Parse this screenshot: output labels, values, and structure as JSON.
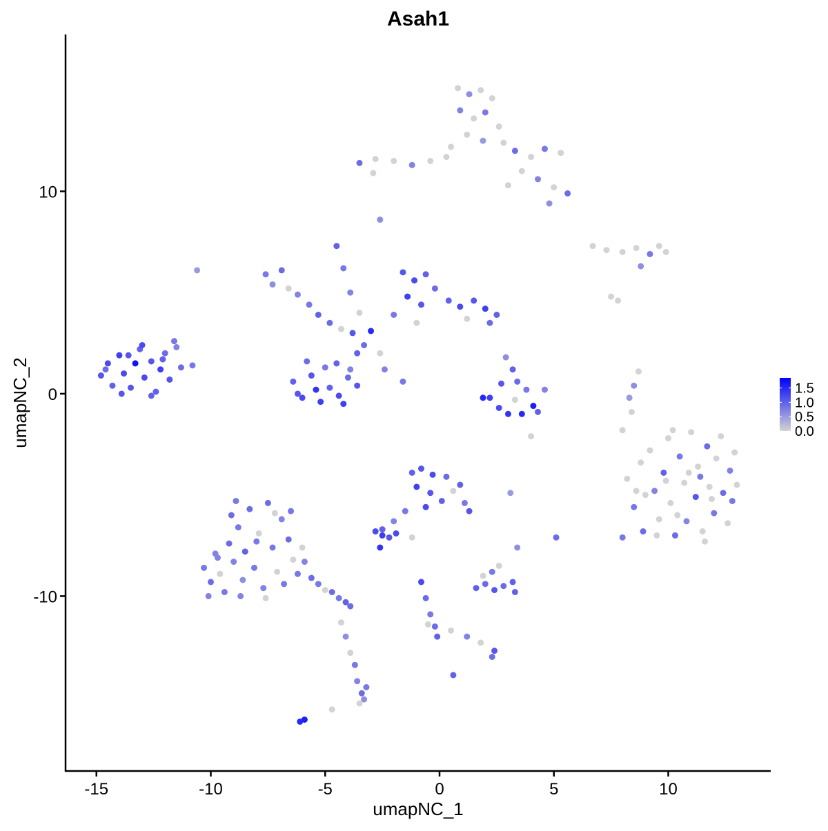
{
  "chart_data": {
    "type": "scatter",
    "title": "Asah1",
    "x_label": "umapNC_1",
    "y_label": "umapNC_2",
    "xlim": [
      -16.35,
      14.48
    ],
    "xticks": [
      -15,
      -10,
      -5,
      0,
      5,
      10
    ],
    "ylim": [
      -18.64,
      17.75
    ],
    "yticks": [
      -10,
      0,
      10
    ],
    "colorbar": {
      "lim": [
        0,
        1.85
      ],
      "low_color": "#d3d3d3",
      "high_color": "#0000ff",
      "ticks": [
        {
          "value": 0,
          "label": "0.0"
        },
        0.5,
        {
          "value": 1,
          "label": "1.0"
        },
        1.5
      ]
    },
    "x": [
      0.8,
      1.3,
      1.8,
      2.3,
      0.9,
      1.5,
      2.0,
      2.6,
      1.2,
      1.9,
      2.8,
      3.3,
      4.0,
      4.6,
      5.3,
      3.6,
      4.3,
      5.0,
      5.6,
      4.8,
      -3.5,
      -2.8,
      -2.0,
      -1.2,
      -0.4,
      0.3,
      -2.9,
      -2.6,
      3.0,
      0.5,
      6.7,
      7.3,
      8.0,
      8.6,
      9.2,
      9.6,
      9.9,
      8.8,
      7.5,
      7.8,
      -6.4,
      -6.0,
      -5.6,
      -5.2,
      -4.8,
      -4.4,
      -4.0,
      -3.6,
      -5.8,
      -5.0,
      -4.5,
      -3.9,
      -5.4,
      -6.2,
      -4.2,
      -7.6,
      -7.3,
      -6.9,
      -6.6,
      -6.2,
      -5.7,
      -5.3,
      -4.8,
      -4.3,
      -3.8,
      -4.5,
      -4.2,
      -3.9,
      -3.5,
      -3.0,
      -3.3,
      -2.6,
      -3.6,
      -2.4,
      -1.6,
      -1.6,
      -1.1,
      -0.6,
      -1.4,
      -0.8,
      -0.2,
      0.4,
      -2.0,
      -1.0,
      0.9,
      1.5,
      2.0,
      2.5,
      1.2,
      2.2,
      -14.8,
      -14.5,
      -14.3,
      -14.0,
      -13.8,
      -13.5,
      -13.3,
      -13.1,
      -12.9,
      -12.6,
      -12.4,
      -12.2,
      -12.0,
      -11.8,
      -11.6,
      -11.3,
      -10.8,
      -12.6,
      -13.9,
      -14.6,
      -13.0,
      -12.1,
      -11.5,
      -10.6,
      -13.6,
      2.9,
      3.2,
      3.4,
      2.7,
      3.8,
      2.2,
      2.6,
      3.0,
      3.6,
      4.1,
      4.3,
      4.6,
      3.3,
      1.9,
      4.0,
      8.2,
      8.5,
      8.8,
      8.9,
      9.2,
      9.4,
      9.6,
      9.8,
      10.0,
      10.1,
      10.3,
      10.5,
      10.7,
      10.8,
      11.0,
      11.2,
      11.3,
      11.5,
      11.7,
      11.8,
      12.0,
      12.1,
      12.3,
      12.4,
      12.6,
      12.7,
      12.9,
      13.0,
      12.8,
      9.0,
      9.9,
      10.9,
      11.4,
      10.4,
      11.9,
      9.5,
      8.0,
      10.2,
      8.6,
      11.6,
      8.7,
      8.5,
      8.3,
      8.4,
      8.0,
      -10.3,
      -10.0,
      -9.8,
      -9.6,
      -9.4,
      -9.2,
      -9.0,
      -8.8,
      -8.6,
      -8.5,
      -8.3,
      -8.1,
      -7.9,
      -7.7,
      -7.5,
      -7.3,
      -7.1,
      -6.9,
      -6.8,
      -6.6,
      -6.4,
      -6.2,
      -5.9,
      -5.6,
      -5.3,
      -5.0,
      -4.7,
      -4.4,
      -4.1,
      -3.9,
      -9.7,
      -8.9,
      -8.0,
      -7.2,
      -8.7,
      -7.6,
      -6.0,
      -9.1,
      -6.5,
      -10.1,
      -4.3,
      -4.1,
      -3.9,
      -3.7,
      -3.6,
      -3.4,
      -3.5,
      -3.2,
      -5.9,
      -6.1,
      -4.7,
      -3.3,
      -1.2,
      -0.8,
      -0.3,
      0.3,
      0.6,
      -1.0,
      -0.4,
      0.1,
      -0.6,
      0.9,
      1.1,
      1.3,
      -1.5,
      -2.0,
      -2.5,
      -2.8,
      -2.5,
      -2.2,
      -1.9,
      -2.6,
      -1.2,
      3.1,
      5.1,
      1.6,
      2.0,
      2.4,
      2.8,
      3.2,
      2.3,
      2.6,
      1.9,
      3.3,
      3.4,
      -0.8,
      -0.6,
      -0.4,
      -0.2,
      -0.1,
      0.5,
      1.2,
      1.8,
      2.4,
      2.3,
      0.6,
      -0.5
    ],
    "y": [
      15.1,
      14.8,
      15.0,
      14.6,
      14.0,
      13.6,
      13.9,
      13.2,
      12.8,
      12.5,
      12.4,
      12.0,
      11.7,
      12.1,
      11.9,
      11.0,
      10.6,
      10.2,
      9.9,
      9.4,
      11.4,
      11.6,
      11.5,
      11.3,
      11.5,
      11.7,
      10.9,
      8.6,
      10.3,
      12.2,
      7.3,
      7.1,
      7.0,
      7.2,
      6.9,
      7.3,
      7.0,
      6.3,
      4.8,
      4.6,
      0.6,
      -0.2,
      0.9,
      -0.4,
      0.3,
      -0.1,
      0.8,
      0.4,
      1.6,
      1.3,
      1.5,
      1.2,
      0.2,
      0.0,
      -0.5,
      5.9,
      5.4,
      6.1,
      5.2,
      4.9,
      4.4,
      3.9,
      3.5,
      3.2,
      3.0,
      7.3,
      6.2,
      5.0,
      4.0,
      3.1,
      2.4,
      2.0,
      2.0,
      1.2,
      0.6,
      6.0,
      5.6,
      5.9,
      4.8,
      4.4,
      5.2,
      4.6,
      3.9,
      3.5,
      4.3,
      4.6,
      4.2,
      3.9,
      3.7,
      3.5,
      0.9,
      1.5,
      0.4,
      1.9,
      1.0,
      0.3,
      1.5,
      2.2,
      0.8,
      1.6,
      0.1,
      1.2,
      2.0,
      0.7,
      2.6,
      1.3,
      1.4,
      -0.1,
      0.0,
      1.2,
      2.4,
      1.7,
      2.3,
      6.1,
      1.9,
      1.8,
      1.2,
      0.6,
      0.5,
      0.2,
      -0.2,
      -0.7,
      -1.0,
      -1.0,
      -0.6,
      -0.9,
      0.2,
      -0.3,
      -0.2,
      -2.1,
      -4.2,
      -5.6,
      -3.4,
      -6.8,
      -2.8,
      -4.8,
      -6.2,
      -3.9,
      -2.2,
      -5.4,
      -7.0,
      -3.1,
      -4.4,
      -6.3,
      -1.9,
      -5.1,
      -3.6,
      -6.8,
      -2.6,
      -4.6,
      -5.9,
      -3.2,
      -2.1,
      -4.9,
      -6.4,
      -3.8,
      -2.9,
      -4.5,
      -5.3,
      -5.0,
      -4.3,
      -3.9,
      -4.1,
      -6.0,
      -5.2,
      -7.0,
      -7.1,
      -1.8,
      -4.8,
      -7.3,
      1.1,
      0.4,
      -0.2,
      -0.9,
      -1.8,
      -8.6,
      -9.3,
      -7.9,
      -8.9,
      -9.8,
      -7.4,
      -8.3,
      -6.6,
      -9.2,
      -7.8,
      -5.7,
      -8.6,
      -6.9,
      -9.6,
      -5.4,
      -7.6,
      -8.8,
      -6.2,
      -9.4,
      -7.2,
      -8.2,
      -8.9,
      -8.3,
      -9.1,
      -9.4,
      -9.7,
      -9.8,
      -10.1,
      -10.3,
      -10.5,
      -8.1,
      -5.3,
      -7.3,
      -5.9,
      -10.0,
      -10.1,
      -7.6,
      -6.0,
      -5.8,
      -10.0,
      -11.3,
      -12.0,
      -12.8,
      -13.4,
      -14.2,
      -14.8,
      -15.3,
      -14.5,
      -16.1,
      -16.2,
      -15.6,
      -15.1,
      -3.9,
      -3.7,
      -4.0,
      -4.1,
      -4.8,
      -4.6,
      -4.9,
      -5.3,
      -5.6,
      -4.5,
      -5.4,
      -5.8,
      -5.8,
      -6.3,
      -6.7,
      -6.8,
      -7.0,
      -7.1,
      -6.9,
      -7.6,
      -7.1,
      -4.9,
      -7.1,
      -9.6,
      -9.4,
      -9.7,
      -9.5,
      -9.3,
      -8.8,
      -8.5,
      -9.0,
      -9.8,
      -7.6,
      -9.3,
      -10.1,
      -10.9,
      -11.5,
      -12.0,
      -11.7,
      -12.0,
      -12.3,
      -12.7,
      -13.0,
      -13.9,
      -11.4
    ],
    "expression": [
      0,
      0.6,
      0,
      0,
      0.7,
      0,
      0.8,
      0,
      0,
      0.5,
      0,
      0.9,
      0,
      0.8,
      0,
      0,
      0.7,
      0,
      0.9,
      0.6,
      0.9,
      0,
      0,
      0.7,
      0,
      0,
      0,
      0.6,
      0,
      0,
      0,
      0,
      0,
      0,
      0.8,
      0,
      0,
      0.6,
      0,
      0,
      1.0,
      1.2,
      1.1,
      1.3,
      1.0,
      1.2,
      0.9,
      1.1,
      0.9,
      0.8,
      1.0,
      0.7,
      1.4,
      1.1,
      1.3,
      0.8,
      0.6,
      0.9,
      0,
      0.7,
      0.8,
      1.0,
      0.9,
      0,
      1.1,
      1.0,
      0.8,
      0.7,
      0,
      1.5,
      0.9,
      0,
      1.0,
      0.7,
      0.8,
      1.1,
      1.2,
      1.0,
      1.3,
      1.1,
      0.9,
      1.0,
      0.8,
      0,
      1.2,
      1.1,
      1.3,
      1.0,
      0,
      0.9,
      1.1,
      1.2,
      1.0,
      1.3,
      1.2,
      1.1,
      1.7,
      1.0,
      1.2,
      1.1,
      1.0,
      1.3,
      0.9,
      1.1,
      0.8,
      0.9,
      0.8,
      1.0,
      1.1,
      0.9,
      1.2,
      1.0,
      0.7,
      0.5,
      1.1,
      0.6,
      1.0,
      0.9,
      1.1,
      0.8,
      1.3,
      1.2,
      1.4,
      1.5,
      1.6,
      1.0,
      0.7,
      0,
      1.5,
      0,
      0,
      0.8,
      0,
      0.9,
      0,
      0.7,
      0,
      1.0,
      0,
      0,
      0.9,
      0.8,
      0,
      0.7,
      0,
      1.1,
      0,
      0,
      0.9,
      0,
      0.8,
      0,
      0,
      0.9,
      0,
      0.7,
      0,
      0,
      0.8,
      0,
      0,
      0,
      0.8,
      0,
      0,
      0,
      0.8,
      0,
      0,
      0,
      0,
      0.6,
      0.5,
      0,
      0,
      0.8,
      0.9,
      0.7,
      0,
      0.8,
      0.9,
      0.7,
      0.8,
      0.6,
      1.0,
      0.9,
      0.8,
      0,
      0.7,
      0.9,
      0.8,
      0,
      0.7,
      0.8,
      0.9,
      0,
      0.8,
      0.7,
      0.9,
      0.8,
      0,
      0.9,
      0.8,
      1.0,
      0.9,
      0.7,
      0.8,
      0.8,
      0,
      0.7,
      0,
      0,
      0.9,
      0.8,
      0.7,
      0,
      0.6,
      0,
      0.8,
      0.7,
      0.9,
      0,
      0.8,
      1.6,
      1.5,
      0,
      0.6,
      1.0,
      1.1,
      1.2,
      0.9,
      0,
      1.3,
      1.1,
      1.0,
      1.2,
      1.0,
      0.8,
      1.1,
      0.8,
      0.7,
      1.0,
      1.2,
      1.3,
      1.1,
      1.2,
      1.4,
      0,
      0.5,
      0.9,
      1.0,
      0.9,
      1.1,
      0.9,
      1.0,
      0.8,
      0,
      0,
      1.0,
      0.6,
      1.2,
      0.9,
      0.8,
      0.9,
      1.0,
      0,
      0.7,
      0,
      1.1,
      0.9,
      1.0,
      0
    ]
  }
}
